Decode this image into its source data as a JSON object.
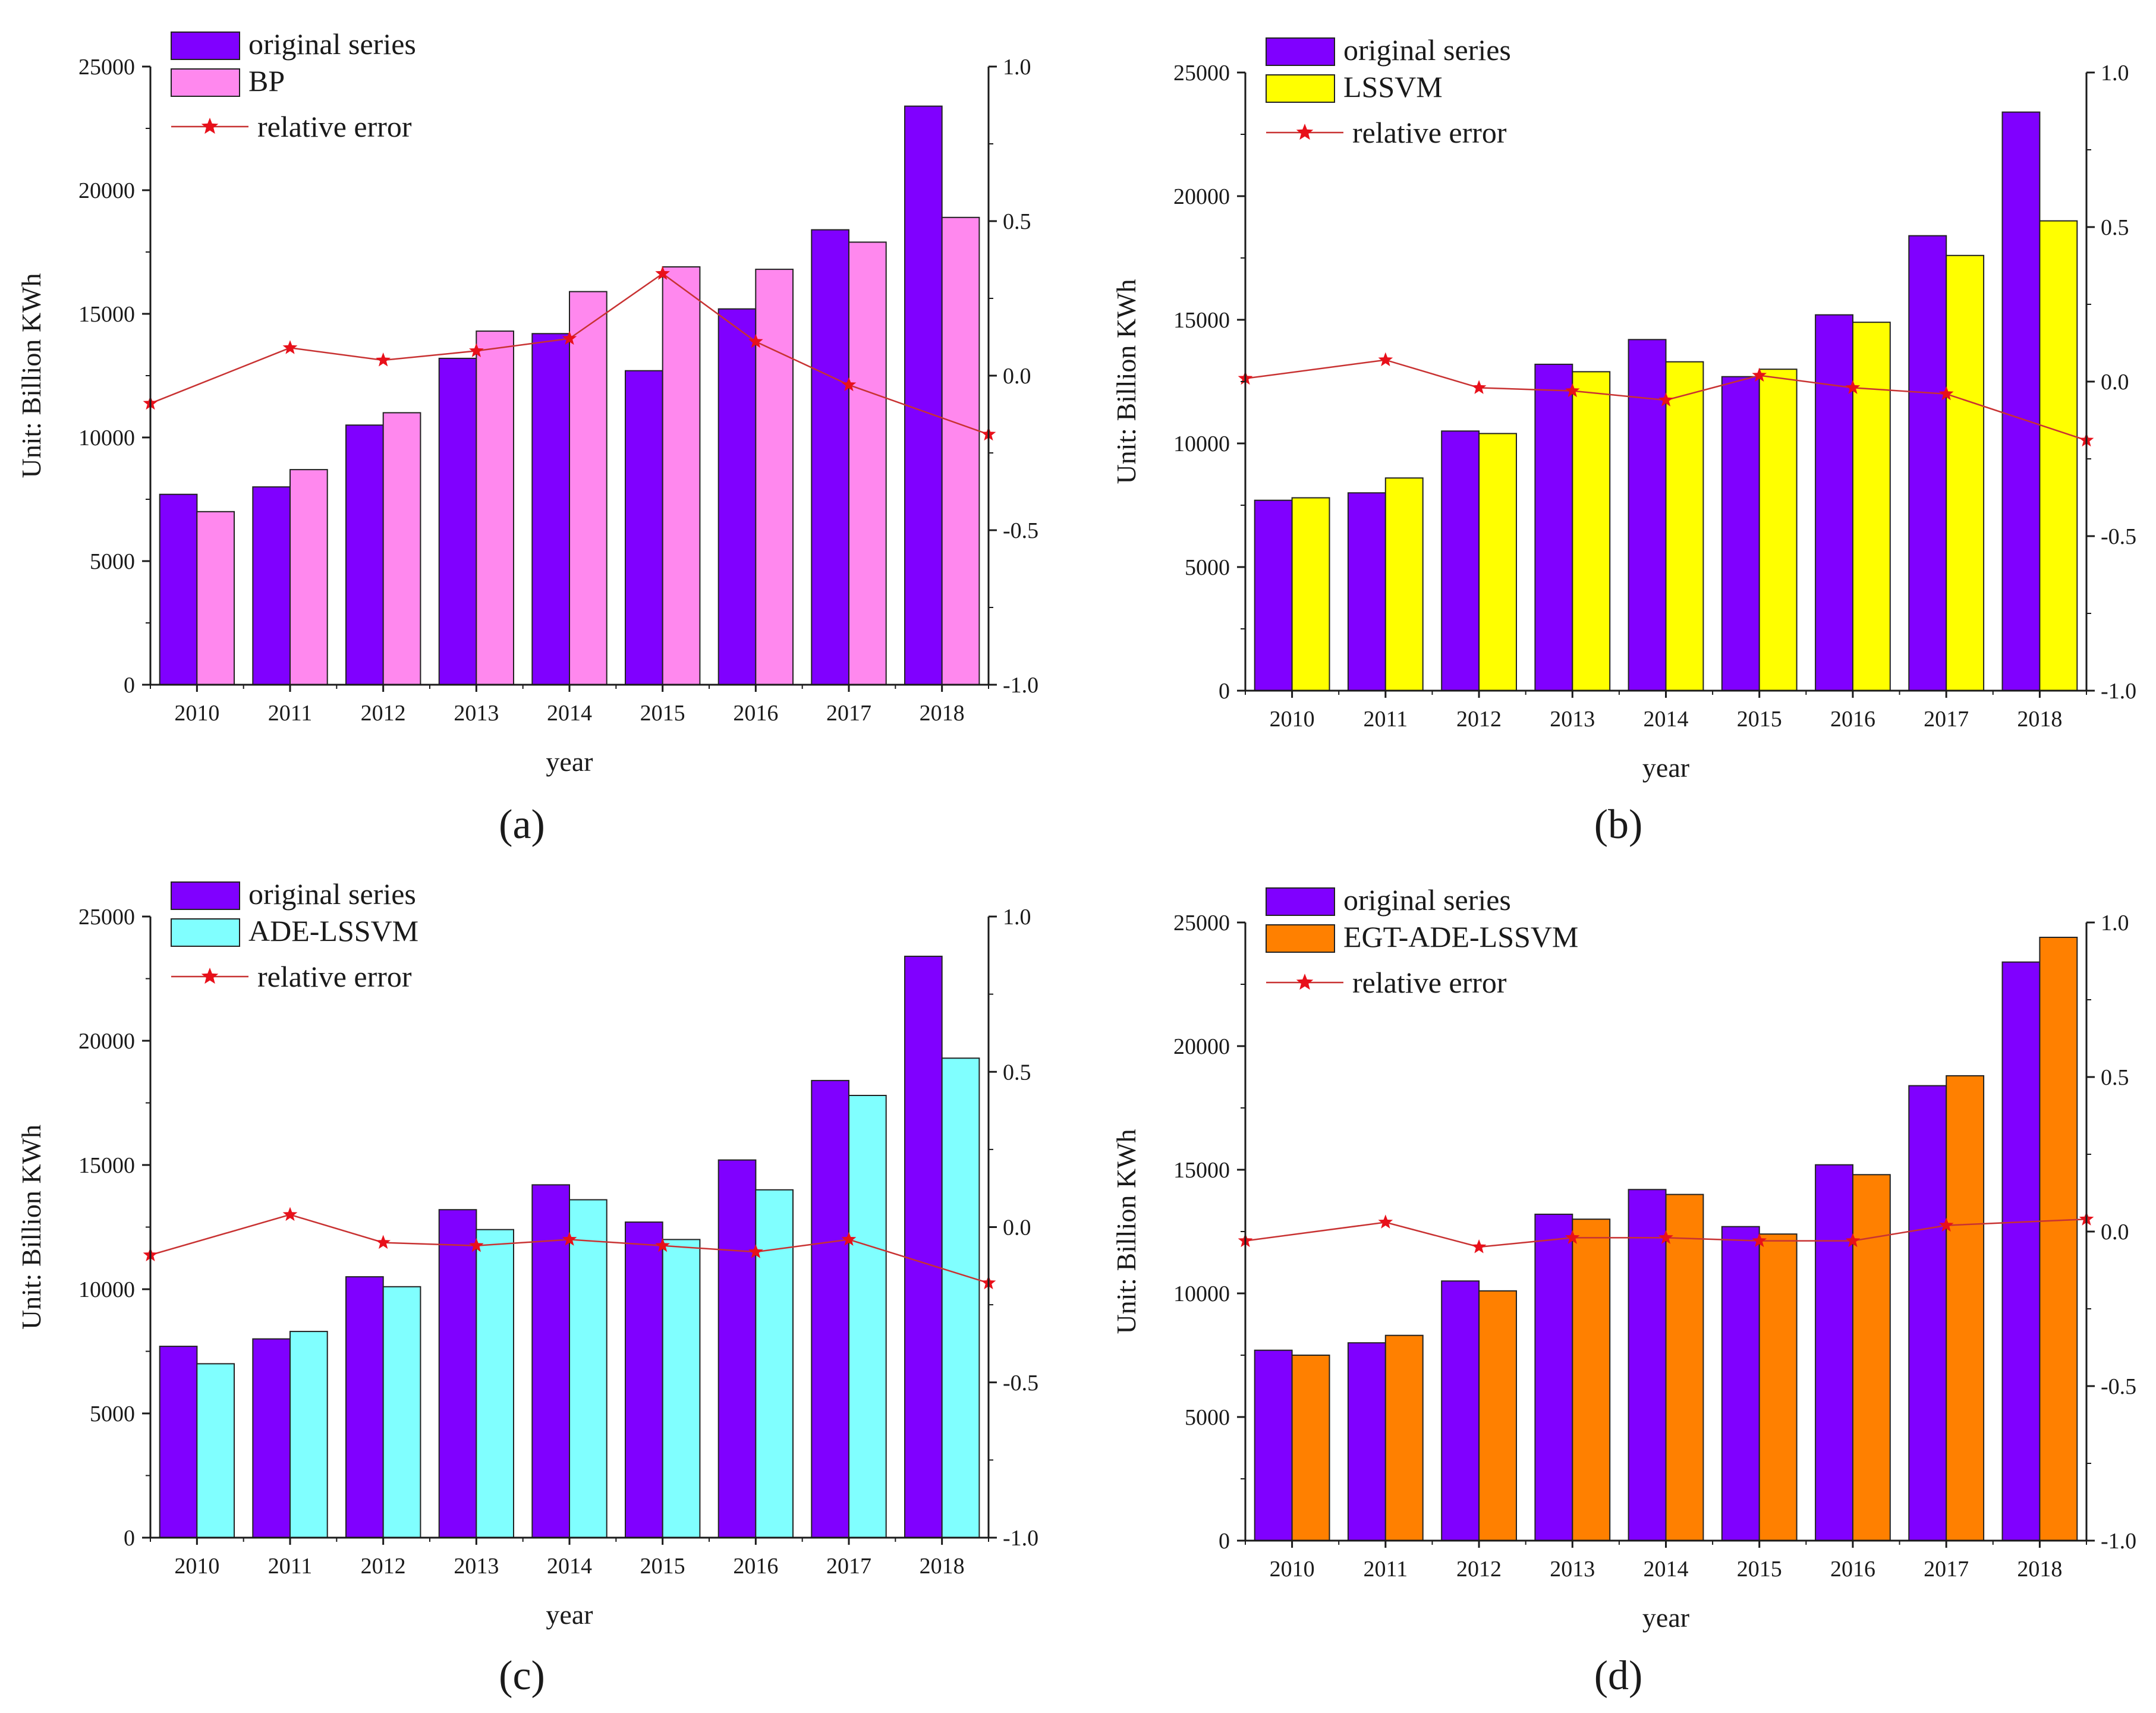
{
  "colors": {
    "original": "#8000ff",
    "line": "#c83232",
    "marker": "#e8101a",
    "axis": "#1a1a1a"
  },
  "chart_data": [
    {
      "id": "a",
      "type": "bar",
      "panel_label": "(a)",
      "categories": [
        "2010",
        "2011",
        "2012",
        "2013",
        "2014",
        "2015",
        "2016",
        "2017",
        "2018"
      ],
      "series": [
        {
          "name": "original series",
          "color": "#8000ff",
          "values": [
            7700,
            8000,
            10500,
            13200,
            14200,
            12700,
            15200,
            18400,
            23400
          ]
        },
        {
          "name": "BP",
          "color": "#ff88ee",
          "values": [
            7000,
            8700,
            11000,
            14300,
            15900,
            16900,
            16800,
            17900,
            18900
          ]
        }
      ],
      "line_series": {
        "name": "relative error",
        "values": [
          -0.09,
          0.09,
          0.05,
          0.08,
          0.12,
          0.33,
          0.11,
          -0.03,
          -0.19
        ]
      },
      "xlabel": "year",
      "ylabel": "Unit: Billion KWh",
      "ylim": [
        0,
        25000
      ],
      "yticks": [
        0,
        5000,
        10000,
        15000,
        20000,
        25000
      ],
      "y2lim": [
        -1.0,
        1.0
      ],
      "y2ticks": [
        "-1.0",
        "-0.5",
        "0.0",
        "0.5",
        "1.0"
      ],
      "legend": "top-left"
    },
    {
      "id": "b",
      "type": "bar",
      "panel_label": "(b)",
      "categories": [
        "2010",
        "2011",
        "2012",
        "2013",
        "2014",
        "2015",
        "2016",
        "2017",
        "2018"
      ],
      "series": [
        {
          "name": "original series",
          "color": "#8000ff",
          "values": [
            7700,
            8000,
            10500,
            13200,
            14200,
            12700,
            15200,
            18400,
            23400
          ]
        },
        {
          "name": "LSSVM",
          "color": "#ffff00",
          "values": [
            7800,
            8600,
            10400,
            12900,
            13300,
            13000,
            14900,
            17600,
            19000
          ]
        }
      ],
      "line_series": {
        "name": "relative error",
        "values": [
          0.01,
          0.07,
          -0.02,
          -0.03,
          -0.06,
          0.02,
          -0.02,
          -0.04,
          -0.19
        ]
      },
      "xlabel": "year",
      "ylabel": "Unit: Billion KWh",
      "ylim": [
        0,
        25000
      ],
      "yticks": [
        0,
        5000,
        10000,
        15000,
        20000,
        25000
      ],
      "y2lim": [
        -1.0,
        1.0
      ],
      "y2ticks": [
        "-1.0",
        "-0.5",
        "0.0",
        "0.5",
        "1.0"
      ],
      "legend": "top-left"
    },
    {
      "id": "c",
      "type": "bar",
      "panel_label": "(c)",
      "categories": [
        "2010",
        "2011",
        "2012",
        "2013",
        "2014",
        "2015",
        "2016",
        "2017",
        "2018"
      ],
      "series": [
        {
          "name": "original series",
          "color": "#8000ff",
          "values": [
            7700,
            8000,
            10500,
            13200,
            14200,
            12700,
            15200,
            18400,
            23400
          ]
        },
        {
          "name": "ADE-LSSVM",
          "color": "#80ffff",
          "values": [
            7000,
            8300,
            10100,
            12400,
            13600,
            12000,
            14000,
            17800,
            19300
          ]
        }
      ],
      "line_series": {
        "name": "relative error",
        "values": [
          -0.09,
          0.04,
          -0.05,
          -0.06,
          -0.04,
          -0.06,
          -0.08,
          -0.04,
          -0.18
        ]
      },
      "xlabel": "year",
      "ylabel": "Unit: Billion KWh",
      "ylim": [
        0,
        25000
      ],
      "yticks": [
        0,
        5000,
        10000,
        15000,
        20000,
        25000
      ],
      "y2lim": [
        -1.0,
        1.0
      ],
      "y2ticks": [
        "-1.0",
        "-0.5",
        "0.0",
        "0.5",
        "1.0"
      ],
      "legend": "top-left"
    },
    {
      "id": "d",
      "type": "bar",
      "panel_label": "(d)",
      "categories": [
        "2010",
        "2011",
        "2012",
        "2013",
        "2014",
        "2015",
        "2016",
        "2017",
        "2018"
      ],
      "series": [
        {
          "name": "original series",
          "color": "#8000ff",
          "values": [
            7700,
            8000,
            10500,
            13200,
            14200,
            12700,
            15200,
            18400,
            23400
          ]
        },
        {
          "name": "EGT-ADE-LSSVM",
          "color": "#ff8000",
          "values": [
            7500,
            8300,
            10100,
            13000,
            14000,
            12400,
            14800,
            18800,
            24400
          ]
        }
      ],
      "line_series": {
        "name": "relative error",
        "values": [
          -0.03,
          0.03,
          -0.05,
          -0.02,
          -0.02,
          -0.03,
          -0.03,
          0.02,
          0.04
        ]
      },
      "xlabel": "year",
      "ylabel": "Unit: Billion KWh",
      "ylim": [
        0,
        25000
      ],
      "yticks": [
        0,
        5000,
        10000,
        15000,
        20000,
        25000
      ],
      "y2lim": [
        -1.0,
        1.0
      ],
      "y2ticks": [
        "-1.0",
        "-0.5",
        "0.0",
        "0.5",
        "1.0"
      ],
      "legend": "top-left"
    }
  ]
}
